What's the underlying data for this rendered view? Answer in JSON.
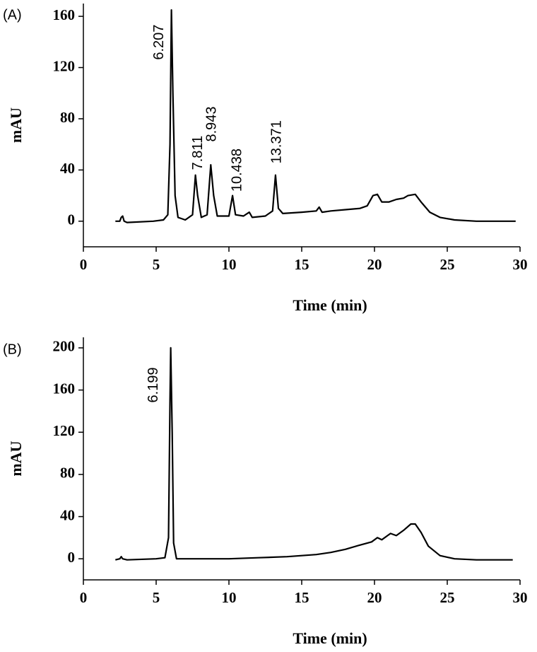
{
  "chart_data": [
    {
      "type": "line",
      "panel_label": "(A)",
      "xlabel": "Time (min)",
      "ylabel": "mAU",
      "color": "#000000",
      "xlim": [
        0,
        30
      ],
      "xticks": [
        0,
        5,
        10,
        15,
        20,
        25,
        30
      ],
      "ylim": [
        -20,
        170
      ],
      "yticks": [
        0,
        40,
        80,
        120,
        160
      ],
      "x": [
        2.2,
        2.5,
        2.6,
        2.7,
        2.8,
        3.0,
        4.8,
        5.5,
        5.8,
        5.95,
        6.05,
        6.15,
        6.3,
        6.5,
        7.0,
        7.5,
        7.7,
        7.85,
        8.1,
        8.5,
        8.75,
        8.95,
        9.2,
        10.0,
        10.25,
        10.45,
        11.0,
        11.4,
        11.6,
        12.5,
        13.0,
        13.2,
        13.4,
        13.7,
        15,
        16,
        16.2,
        16.4,
        17,
        18,
        19,
        19.5,
        19.9,
        20.2,
        20.5,
        21,
        21.5,
        22,
        22.3,
        22.8,
        23.2,
        23.8,
        24.5,
        25.5,
        27,
        29.7
      ],
      "values": [
        0,
        0,
        3,
        4,
        0,
        -1,
        0,
        1,
        5,
        60,
        165,
        100,
        20,
        3,
        1,
        5,
        36,
        20,
        3,
        5,
        44,
        20,
        4,
        4,
        20,
        5,
        4,
        7,
        3,
        4,
        8,
        36,
        10,
        6,
        7,
        8,
        11,
        7,
        8,
        9,
        10,
        12,
        20,
        21,
        15,
        15,
        17,
        18,
        20,
        21,
        15,
        7,
        3,
        1,
        0,
        0
      ],
      "annotations": [
        {
          "label": "6.207",
          "x": 5.24,
          "y": 126
        },
        {
          "label": "7.811",
          "x": 7.9,
          "y": 40
        },
        {
          "label": "8.943",
          "x": 8.85,
          "y": 62
        },
        {
          "label": "10.438",
          "x": 10.6,
          "y": 23
        },
        {
          "label": "13.371",
          "x": 13.3,
          "y": 45
        }
      ]
    },
    {
      "type": "line",
      "panel_label": "(B)",
      "xlabel": "Time (min)",
      "ylabel": "mAU",
      "color": "#000000",
      "xlim": [
        0,
        30
      ],
      "xticks": [
        0,
        5,
        10,
        15,
        20,
        25,
        30
      ],
      "ylim": [
        -20,
        210
      ],
      "yticks": [
        0,
        40,
        80,
        120,
        160,
        200
      ],
      "x": [
        2.2,
        2.5,
        2.6,
        2.7,
        3.0,
        5.0,
        5.6,
        5.85,
        5.95,
        6.0,
        6.1,
        6.2,
        6.4,
        7,
        10,
        12,
        14,
        16,
        17,
        18,
        19,
        19.8,
        20.2,
        20.5,
        20.9,
        21.1,
        21.5,
        22,
        22.5,
        22.8,
        23.2,
        23.7,
        24.5,
        25.5,
        27,
        29.5
      ],
      "values": [
        -1,
        0,
        2,
        0,
        -1,
        0,
        1,
        20,
        150,
        200,
        120,
        15,
        0,
        0,
        0,
        1,
        2,
        4,
        6,
        9,
        13,
        16,
        20,
        18,
        22,
        24,
        22,
        27,
        33,
        33,
        25,
        12,
        3,
        0,
        -1,
        -1
      ],
      "annotations": [
        {
          "label": "6.199",
          "x": 4.85,
          "y": 148
        }
      ]
    }
  ]
}
